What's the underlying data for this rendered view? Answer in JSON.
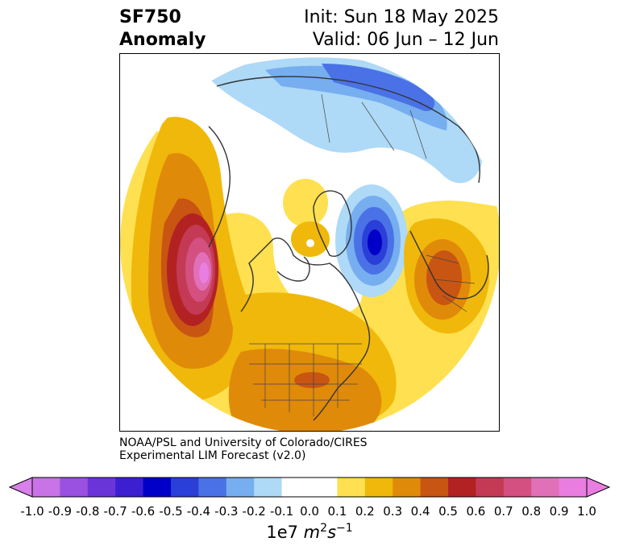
{
  "title": {
    "line1_left": "SF750",
    "line2_left": "Anomaly",
    "line1_right": "Init: Sun 18 May 2025",
    "line2_right": "Valid: 06 Jun – 12 Jun"
  },
  "credit": {
    "line1": "NOAA/PSL and University of Colorado/CIRES",
    "line2": "Experimental LIM Forecast (v2.0)"
  },
  "colorbar": {
    "ticks": [
      "-1.0",
      "-0.9",
      "-0.8",
      "-0.7",
      "-0.6",
      "-0.5",
      "-0.4",
      "-0.3",
      "-0.2",
      "-0.1",
      "0.0",
      "0.1",
      "0.2",
      "0.3",
      "0.4",
      "0.5",
      "0.6",
      "0.7",
      "0.8",
      "0.9",
      "1.0"
    ],
    "colors": [
      "#c873e6",
      "#9a50e0",
      "#6a35d8",
      "#3c1fd1",
      "#0000c8",
      "#2a3ed8",
      "#4a72e6",
      "#76aef0",
      "#aed9f7",
      "#ffffff",
      "#ffffff",
      "#ffe050",
      "#f0b80a",
      "#e08a0a",
      "#c95512",
      "#b32222",
      "#c43a55",
      "#d35080",
      "#e070b8",
      "#ea7de0"
    ],
    "extend_low_color": "#d880ea",
    "extend_high_color": "#ea7de0",
    "units_prefix": "1e7 ",
    "units_m": "m",
    "units_m_exp": "2",
    "units_s": "s",
    "units_s_exp": "−1"
  },
  "map": {
    "projection": "north-polar-stereographic",
    "field": "streamfunction anomaly at 750 hPa"
  }
}
